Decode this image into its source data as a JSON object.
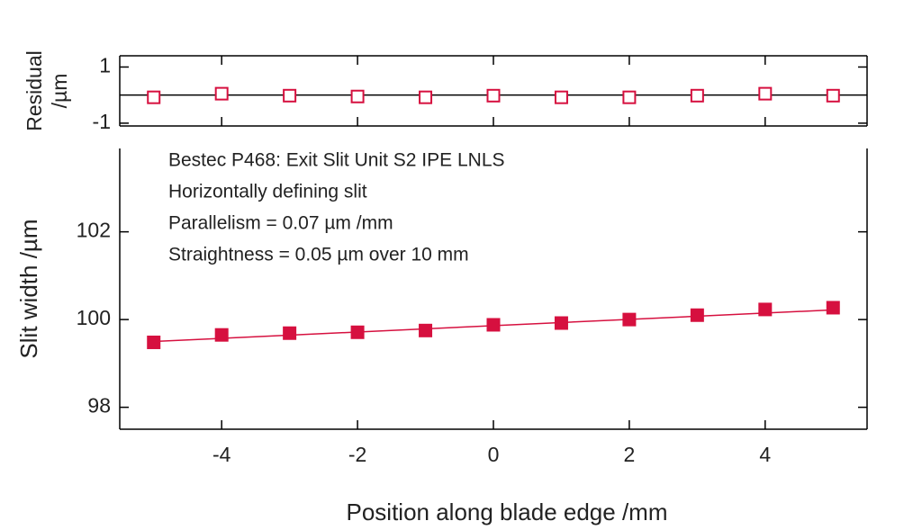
{
  "chart_data": [
    {
      "type": "scatter",
      "marker": "open-square",
      "color": "#d6103f",
      "ylabel": [
        "Residual",
        "/µm"
      ],
      "x": [
        -5,
        -4,
        -3,
        -2,
        -1,
        0,
        1,
        2,
        3,
        4,
        5
      ],
      "values": [
        -0.08,
        0.05,
        -0.02,
        -0.05,
        -0.08,
        -0.02,
        -0.08,
        -0.08,
        -0.02,
        0.05,
        -0.02
      ],
      "hline": 0,
      "xlim": [
        -5.5,
        5.5
      ],
      "xticks": [
        -4,
        -2,
        0,
        2,
        4
      ],
      "ylim": [
        -1.1,
        1.4
      ],
      "yticks": [
        -1,
        1
      ]
    },
    {
      "type": "scatter",
      "marker": "filled-square",
      "color": "#d6103f",
      "xlabel": "Position along blade edge /mm",
      "ylabel": "Slit width /µm",
      "annotations": [
        "Bestec P468: Exit Slit Unit S2 IPE LNLS",
        "Horizontally defining slit",
        "Parallelism = 0.07 µm /mm",
        "Straightness = 0.05 µm over 10 mm"
      ],
      "x": [
        -5,
        -4,
        -3,
        -2,
        -1,
        0,
        1,
        2,
        3,
        4,
        5
      ],
      "values": [
        99.48,
        99.65,
        99.69,
        99.71,
        99.75,
        99.88,
        99.92,
        100.0,
        100.1,
        100.23,
        100.27
      ],
      "fit": {
        "x": [
          -5,
          5
        ],
        "values": [
          99.5,
          100.22
        ]
      },
      "xlim": [
        -5.5,
        5.5
      ],
      "xticks": [
        -4,
        -2,
        0,
        2,
        4
      ],
      "ylim": [
        97.5,
        103.9
      ],
      "yticks": [
        98,
        100,
        102
      ]
    }
  ]
}
